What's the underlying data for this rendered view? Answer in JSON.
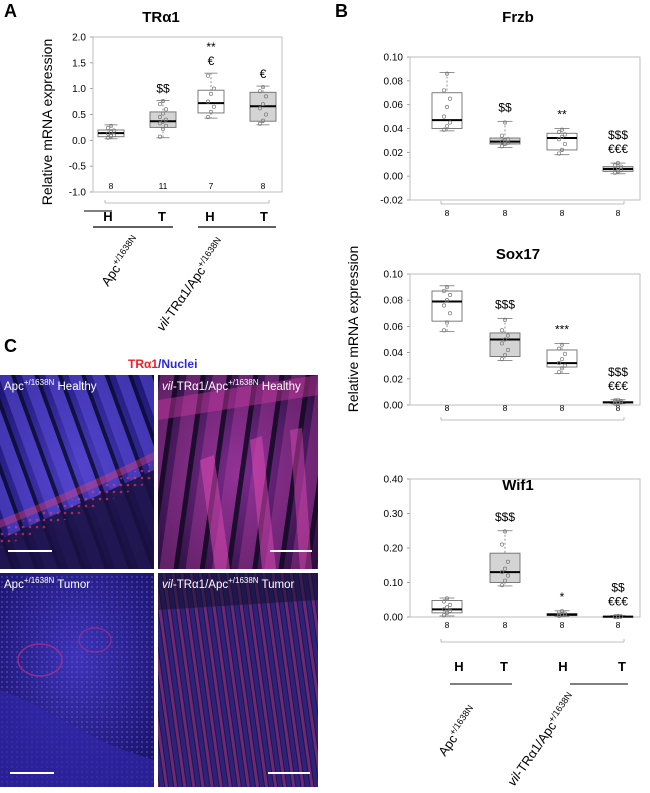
{
  "panels": {
    "A": {
      "letter": "A"
    },
    "B": {
      "letter": "B"
    },
    "C": {
      "letter": "C"
    }
  },
  "y_axis_label": "Relative mRNA expression",
  "groups": {
    "H": "H",
    "T": "T",
    "apc": {
      "base": "Apc",
      "sup": "+/1638N"
    },
    "vil": {
      "italic": "vil",
      "mid": "-TRα1/Apc",
      "sup": "+/1638N"
    }
  },
  "micrographs": {
    "legend": {
      "red": "TRα1",
      "slash": "/",
      "blue": "Nuclei"
    },
    "tiles": [
      {
        "base": "Apc",
        "sup": "+/1638N",
        "rest": " Healthy",
        "italic": ""
      },
      {
        "italic": "vil",
        "base": "-TRα1/Apc",
        "sup": "+/1638N",
        "rest": " Healthy"
      },
      {
        "base": "Apc",
        "sup": "+/1638N",
        "rest": " Tumor",
        "italic": ""
      },
      {
        "italic": "vil",
        "base": "-TRα1/Apc",
        "sup": "+/1638N",
        "rest": " Tumor"
      }
    ]
  },
  "chart_data": [
    {
      "type": "box",
      "title": "TRα1",
      "ylabel": "Relative mRNA expression",
      "ylim": [
        -1.0,
        2.0
      ],
      "yticks": [
        "2.0",
        "1.5",
        "1.0",
        "0.5",
        "0.0",
        "-0.5",
        "-1.0"
      ],
      "categories": [
        "Apc H",
        "Apc T",
        "vil H",
        "vil T"
      ],
      "n": [
        "8",
        "11",
        "7",
        "8"
      ],
      "boxes": [
        {
          "min": 0.03,
          "q1": 0.07,
          "median": 0.14,
          "q3": 0.2,
          "max": 0.3,
          "fill": "#ffffff",
          "points": [
            0.05,
            0.08,
            0.1,
            0.13,
            0.16,
            0.19,
            0.24,
            0.28
          ]
        },
        {
          "min": 0.05,
          "q1": 0.25,
          "median": 0.37,
          "q3": 0.55,
          "max": 0.77,
          "fill": "#d4d4d4",
          "points": [
            0.07,
            0.22,
            0.28,
            0.33,
            0.36,
            0.4,
            0.45,
            0.52,
            0.6,
            0.7,
            0.76
          ]
        },
        {
          "min": 0.43,
          "q1": 0.53,
          "median": 0.72,
          "q3": 0.97,
          "max": 1.3,
          "fill": "#ffffff",
          "points": [
            0.45,
            0.55,
            0.65,
            0.75,
            0.9,
            1.0,
            1.25
          ]
        },
        {
          "min": 0.3,
          "q1": 0.37,
          "median": 0.66,
          "q3": 0.93,
          "max": 1.05,
          "fill": "#d4d4d4",
          "points": [
            0.32,
            0.38,
            0.5,
            0.62,
            0.7,
            0.85,
            0.95,
            1.03
          ]
        }
      ],
      "annotations": [
        {
          "i": 1,
          "lines": [
            "$$"
          ]
        },
        {
          "i": 2,
          "lines": [
            "**",
            "€"
          ]
        },
        {
          "i": 3,
          "lines": [
            "€"
          ]
        }
      ]
    },
    {
      "type": "box",
      "title": "Frzb",
      "ylim": [
        -0.02,
        0.1
      ],
      "yticks": [
        "0.10",
        "0.08",
        "0.06",
        "0.04",
        "0.02",
        "0.00",
        "-0.02"
      ],
      "categories": [
        "Apc H",
        "Apc T",
        "vil H",
        "vil T"
      ],
      "n": [
        "8",
        "8",
        "8",
        "8"
      ],
      "boxes": [
        {
          "min": 0.038,
          "q1": 0.04,
          "median": 0.047,
          "q3": 0.07,
          "max": 0.087,
          "fill": "#ffffff",
          "points": [
            0.039,
            0.042,
            0.045,
            0.05,
            0.058,
            0.065,
            0.072,
            0.086
          ]
        },
        {
          "min": 0.024,
          "q1": 0.027,
          "median": 0.029,
          "q3": 0.032,
          "max": 0.046,
          "fill": "#d4d4d4",
          "points": [
            0.025,
            0.027,
            0.028,
            0.029,
            0.03,
            0.031,
            0.034,
            0.045
          ]
        },
        {
          "min": 0.018,
          "q1": 0.022,
          "median": 0.032,
          "q3": 0.036,
          "max": 0.04,
          "fill": "#ffffff",
          "points": [
            0.019,
            0.022,
            0.027,
            0.031,
            0.033,
            0.035,
            0.037,
            0.039
          ]
        },
        {
          "min": 0.002,
          "q1": 0.004,
          "median": 0.006,
          "q3": 0.008,
          "max": 0.011,
          "fill": "#d4d4d4",
          "points": [
            0.003,
            0.004,
            0.005,
            0.006,
            0.007,
            0.008,
            0.009,
            0.011
          ]
        }
      ],
      "annotations": [
        {
          "i": 1,
          "lines": [
            "$$"
          ]
        },
        {
          "i": 2,
          "lines": [
            "**"
          ]
        },
        {
          "i": 3,
          "lines": [
            "$$$",
            "€€€"
          ]
        }
      ]
    },
    {
      "type": "box",
      "title": "Sox17",
      "ylim": [
        0.0,
        0.1
      ],
      "yticks": [
        "0.10",
        "0.08",
        "0.06",
        "0.04",
        "0.02",
        "0.00"
      ],
      "categories": [
        "Apc H",
        "Apc T",
        "vil H",
        "vil T"
      ],
      "n": [
        "8",
        "8",
        "8",
        "8"
      ],
      "boxes": [
        {
          "min": 0.056,
          "q1": 0.064,
          "median": 0.079,
          "q3": 0.087,
          "max": 0.091,
          "fill": "#ffffff",
          "points": [
            0.057,
            0.063,
            0.07,
            0.076,
            0.08,
            0.084,
            0.087,
            0.09
          ]
        },
        {
          "min": 0.034,
          "q1": 0.037,
          "median": 0.05,
          "q3": 0.055,
          "max": 0.066,
          "fill": "#d4d4d4",
          "points": [
            0.035,
            0.038,
            0.042,
            0.047,
            0.05,
            0.053,
            0.057,
            0.065
          ]
        },
        {
          "min": 0.024,
          "q1": 0.029,
          "median": 0.032,
          "q3": 0.042,
          "max": 0.047,
          "fill": "#ffffff",
          "points": [
            0.025,
            0.028,
            0.03,
            0.032,
            0.035,
            0.039,
            0.043,
            0.046
          ]
        },
        {
          "min": 0.001,
          "q1": 0.0015,
          "median": 0.002,
          "q3": 0.0025,
          "max": 0.004,
          "fill": "#d4d4d4",
          "points": [
            0.001,
            0.0015,
            0.002,
            0.002,
            0.0025,
            0.003,
            0.0035,
            0.004
          ]
        }
      ],
      "annotations": [
        {
          "i": 1,
          "lines": [
            "$$$"
          ]
        },
        {
          "i": 2,
          "lines": [
            "***"
          ]
        },
        {
          "i": 3,
          "lines": [
            "$$$",
            "€€€"
          ]
        }
      ]
    },
    {
      "type": "box",
      "title": "Wif1",
      "ylim": [
        0.0,
        0.4
      ],
      "yticks": [
        "0.40",
        "0.30",
        "0.20",
        "0.10",
        "0.00"
      ],
      "categories": [
        "Apc H",
        "Apc T",
        "vil H",
        "vil T"
      ],
      "n": [
        "8",
        "8",
        "8",
        "8"
      ],
      "boxes": [
        {
          "min": 0.003,
          "q1": 0.012,
          "median": 0.022,
          "q3": 0.048,
          "max": 0.055,
          "fill": "#ffffff",
          "points": [
            0.005,
            0.012,
            0.018,
            0.022,
            0.028,
            0.035,
            0.045,
            0.054
          ]
        },
        {
          "min": 0.09,
          "q1": 0.1,
          "median": 0.13,
          "q3": 0.185,
          "max": 0.25,
          "fill": "#d4d4d4",
          "points": [
            0.092,
            0.105,
            0.12,
            0.13,
            0.14,
            0.16,
            0.21,
            0.248
          ]
        },
        {
          "min": 0.002,
          "q1": 0.004,
          "median": 0.007,
          "q3": 0.01,
          "max": 0.018,
          "fill": "#ffffff",
          "points": [
            0.003,
            0.005,
            0.006,
            0.007,
            0.008,
            0.01,
            0.013,
            0.017
          ]
        },
        {
          "min": 0.0,
          "q1": 0.0,
          "median": 0.001,
          "q3": 0.002,
          "max": 0.004,
          "fill": "#d4d4d4",
          "points": [
            0.0,
            0.0,
            0.001,
            0.001,
            0.001,
            0.002,
            0.002,
            0.003
          ]
        }
      ],
      "annotations": [
        {
          "i": 1,
          "lines": [
            "$$$"
          ]
        },
        {
          "i": 2,
          "lines": [
            "*"
          ]
        },
        {
          "i": 3,
          "lines": [
            "$$",
            "€€€"
          ]
        }
      ]
    }
  ]
}
